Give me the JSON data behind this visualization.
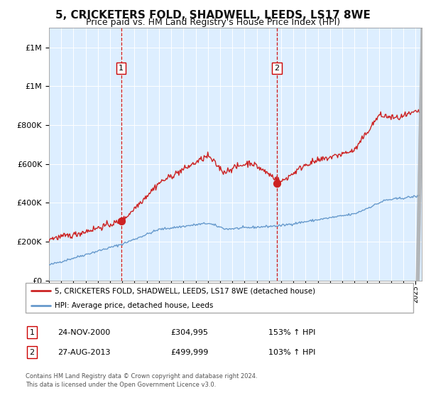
{
  "title": "5, CRICKETERS FOLD, SHADWELL, LEEDS, LS17 8WE",
  "subtitle": "Price paid vs. HM Land Registry's House Price Index (HPI)",
  "title_fontsize": 11,
  "subtitle_fontsize": 9,
  "background_color": "#ffffff",
  "plot_bg_color": "#ddeeff",
  "hpi_line_color": "#6699cc",
  "price_line_color": "#cc2222",
  "sale1_date_num": 2000.9,
  "sale1_price": 304995,
  "sale1_label": "1",
  "sale1_date_str": "24-NOV-2000",
  "sale1_hpi_pct": "153% ↑ HPI",
  "sale2_date_num": 2013.65,
  "sale2_price": 499999,
  "sale2_label": "2",
  "sale2_date_str": "27-AUG-2013",
  "sale2_hpi_pct": "103% ↑ HPI",
  "xmin": 1995.0,
  "xmax": 2025.5,
  "ymin": 0,
  "ymax": 1300000,
  "yticks": [
    0,
    200000,
    400000,
    600000,
    800000,
    1000000,
    1200000
  ],
  "legend_line1": "5, CRICKETERS FOLD, SHADWELL, LEEDS, LS17 8WE (detached house)",
  "legend_line2": "HPI: Average price, detached house, Leeds",
  "footer": "Contains HM Land Registry data © Crown copyright and database right 2024.\nThis data is licensed under the Open Government Licence v3.0.",
  "shaded_region_start": 2000.9,
  "shaded_region_end": 2013.65,
  "sale1_price_str": "£304,995",
  "sale2_price_str": "£499,999"
}
